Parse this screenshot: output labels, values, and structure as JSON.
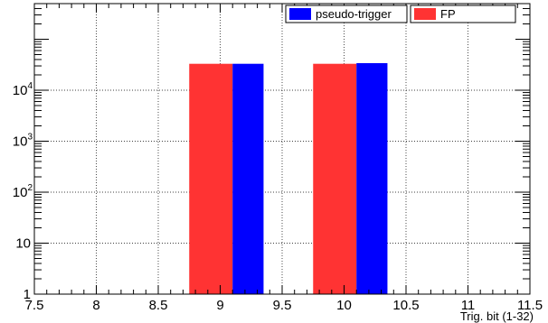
{
  "chart_data": {
    "type": "bar",
    "xlabel": "Trig. bit (1-32)",
    "ylabel": "",
    "title": "",
    "xlim": [
      7.5,
      11.5
    ],
    "ylim": [
      1,
      500000
    ],
    "yscale": "log",
    "grid": true,
    "legend_position": "top-right",
    "x_ticks": [
      {
        "value": 7.5,
        "label": "7.5"
      },
      {
        "value": 8,
        "label": "8"
      },
      {
        "value": 8.5,
        "label": "8.5"
      },
      {
        "value": 9,
        "label": "9"
      },
      {
        "value": 9.5,
        "label": "9.5"
      },
      {
        "value": 10,
        "label": "10"
      },
      {
        "value": 10.5,
        "label": "10.5"
      },
      {
        "value": 11,
        "label": "11"
      },
      {
        "value": 11.5,
        "label": "11.5"
      }
    ],
    "y_ticks": [
      {
        "value": 1,
        "base": "1",
        "exp": ""
      },
      {
        "value": 10,
        "base": "10",
        "exp": ""
      },
      {
        "value": 100,
        "base": "10",
        "exp": "2"
      },
      {
        "value": 1000,
        "base": "10",
        "exp": "3"
      },
      {
        "value": 10000,
        "base": "10",
        "exp": "4"
      }
    ],
    "series": [
      {
        "name": "FP",
        "color": "#ff3333",
        "bars": [
          {
            "x0": 8.75,
            "x1": 9.1,
            "value": 33000
          },
          {
            "x0": 9.75,
            "x1": 10.1,
            "value": 33000
          }
        ]
      },
      {
        "name": "pseudo-trigger",
        "color": "#0000ff",
        "bars": [
          {
            "x0": 9.1,
            "x1": 9.35,
            "value": 33000
          },
          {
            "x0": 10.1,
            "x1": 10.35,
            "value": 34000
          }
        ]
      }
    ],
    "legend": [
      {
        "name": "pseudo-trigger",
        "color": "#0000ff"
      },
      {
        "name": "FP",
        "color": "#ff3333"
      }
    ]
  }
}
